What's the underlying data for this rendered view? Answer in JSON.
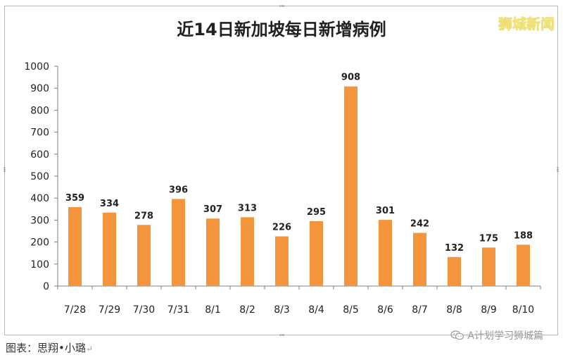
{
  "chart_data": {
    "type": "bar",
    "title": "近14日新加坡每日新增病例",
    "categories": [
      "7/28",
      "7/29",
      "7/30",
      "7/31",
      "8/1",
      "8/2",
      "8/3",
      "8/4",
      "8/5",
      "8/6",
      "8/7",
      "8/8",
      "8/9",
      "8/10"
    ],
    "values": [
      359,
      334,
      278,
      396,
      307,
      313,
      226,
      295,
      908,
      301,
      242,
      132,
      175,
      188
    ],
    "yticks": [
      0,
      100,
      200,
      300,
      400,
      500,
      600,
      700,
      800,
      900,
      1000
    ],
    "ylim": [
      0,
      1000
    ],
    "xlabel": "",
    "ylabel": "",
    "grid": false,
    "bar_color": "#f4943c"
  },
  "watermark": "狮城新闻",
  "caption": "图表：思翔•小璐",
  "caption_return": "↵",
  "wechat_icon": "wechat-icon",
  "wechat_account": "A计划学习狮城篇"
}
